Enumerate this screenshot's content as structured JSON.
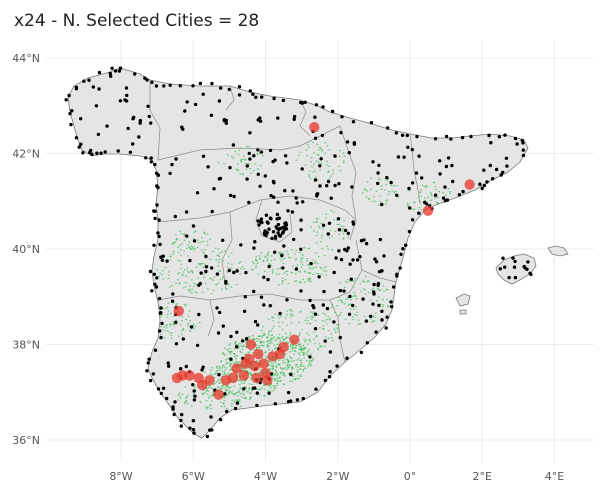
{
  "title": "x24 - N. Selected Cities = 28",
  "map": {
    "lon_range": [
      -10.0,
      4.8
    ],
    "lat_range": [
      35.6,
      44.35
    ],
    "x_ticks": [
      {
        "value": -8,
        "label": "8°W"
      },
      {
        "value": -6,
        "label": "6°W"
      },
      {
        "value": -4,
        "label": "4°W"
      },
      {
        "value": -2,
        "label": "2°W"
      },
      {
        "value": 0,
        "label": "0°"
      },
      {
        "value": 2,
        "label": "2°E"
      },
      {
        "value": 4,
        "label": "4°E"
      }
    ],
    "y_ticks": [
      {
        "value": 44,
        "label": "44°N"
      },
      {
        "value": 42,
        "label": "42°N"
      },
      {
        "value": 40,
        "label": "40°N"
      },
      {
        "value": 38,
        "label": "38°N"
      },
      {
        "value": 36,
        "label": "36°N"
      }
    ],
    "colors": {
      "land": "#e5e5e5",
      "border": "#7a7a7a",
      "city": "#000000",
      "selected_city": "#e8362a",
      "area": "#3fbf5a",
      "grid": "#ebebeb"
    },
    "selected_cities": [
      {
        "lon": -2.65,
        "lat": 42.55
      },
      {
        "lon": 1.65,
        "lat": 41.35
      },
      {
        "lon": 0.5,
        "lat": 40.8
      },
      {
        "lon": -6.4,
        "lat": 38.7
      },
      {
        "lon": -4.4,
        "lat": 38.0
      },
      {
        "lon": -3.2,
        "lat": 38.1
      },
      {
        "lon": -3.5,
        "lat": 37.95
      },
      {
        "lon": -3.6,
        "lat": 37.8
      },
      {
        "lon": -3.8,
        "lat": 37.75
      },
      {
        "lon": -4.05,
        "lat": 37.6
      },
      {
        "lon": -4.3,
        "lat": 37.55
      },
      {
        "lon": -4.55,
        "lat": 37.6
      },
      {
        "lon": -4.8,
        "lat": 37.5
      },
      {
        "lon": -4.0,
        "lat": 37.4
      },
      {
        "lon": -4.25,
        "lat": 37.3
      },
      {
        "lon": -4.6,
        "lat": 37.35
      },
      {
        "lon": -4.9,
        "lat": 37.3
      },
      {
        "lon": -5.1,
        "lat": 37.25
      },
      {
        "lon": -4.45,
        "lat": 37.7
      },
      {
        "lon": -6.3,
        "lat": 37.35
      },
      {
        "lon": -6.1,
        "lat": 37.35
      },
      {
        "lon": -6.45,
        "lat": 37.3
      },
      {
        "lon": -5.85,
        "lat": 37.3
      },
      {
        "lon": -5.55,
        "lat": 37.25
      },
      {
        "lon": -5.75,
        "lat": 37.15
      },
      {
        "lon": -5.3,
        "lat": 36.95
      },
      {
        "lon": -3.95,
        "lat": 37.25
      },
      {
        "lon": -4.2,
        "lat": 37.8
      }
    ]
  }
}
